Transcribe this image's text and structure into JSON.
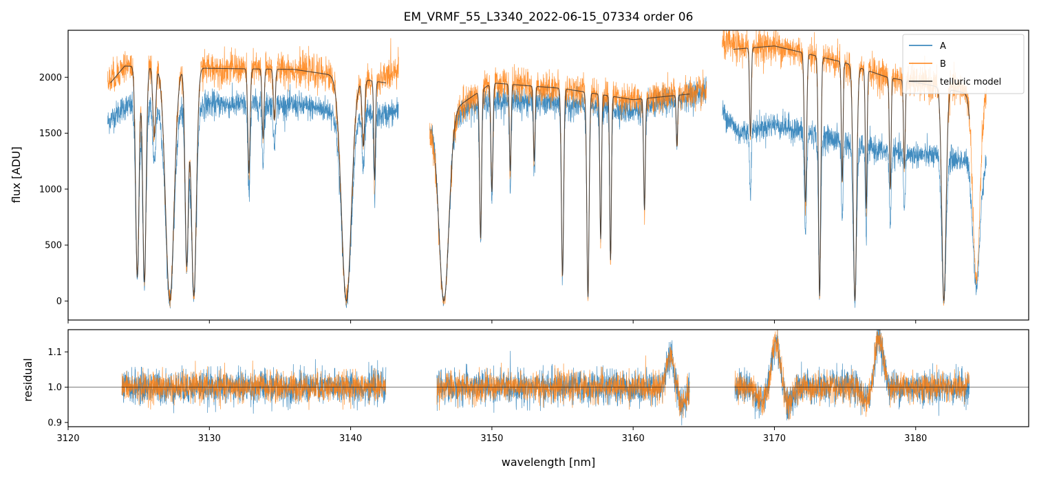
{
  "chart_data": [
    {
      "type": "line",
      "panel": "main",
      "title": "EM_VRMF_55_L3340_2022-06-15_07334  order 06",
      "xlabel": "",
      "ylabel": "flux [ADU]",
      "xlim": [
        3120.0,
        3188.0
      ],
      "ylim": [
        -170,
        2420
      ],
      "yticks": [
        0,
        500,
        1000,
        1500,
        2000
      ],
      "yticklabels": [
        "0",
        "500",
        "1000",
        "1500",
        "2000"
      ],
      "xticks": [
        3120,
        3130,
        3140,
        3150,
        3160,
        3170,
        3180
      ],
      "legend": {
        "placement": "top-right",
        "entries": [
          "A",
          "B",
          "telluric model"
        ]
      },
      "series": [
        {
          "name": "A",
          "color": "#1f77b4",
          "segments": [
            [
              3122.8,
              3143.4
            ],
            [
              3145.6,
              3165.2
            ],
            [
              3166.3,
              3185.0
            ]
          ],
          "noise": 60
        },
        {
          "name": "B",
          "color": "#ff7f0e",
          "segments": [
            [
              3122.8,
              3143.4
            ],
            [
              3145.6,
              3165.2
            ],
            [
              3166.3,
              3185.0
            ]
          ],
          "noise": 70
        },
        {
          "name": "telluric model",
          "color": "#333333",
          "segments": [
            [
              3123.0,
              3142.5
            ],
            [
              3146.0,
              3164.0
            ],
            [
              3167.1,
              3183.8
            ]
          ],
          "noise": 0
        }
      ],
      "continuum": {
        "A": [
          [
            3122.8,
            1600
          ],
          [
            3124,
            1740
          ],
          [
            3130,
            1760
          ],
          [
            3136,
            1750
          ],
          [
            3142,
            1650
          ],
          [
            3143.4,
            1700
          ],
          [
            3145.6,
            1580
          ],
          [
            3150,
            1800
          ],
          [
            3155,
            1760
          ],
          [
            3160,
            1700
          ],
          [
            3165.2,
            1880
          ],
          [
            3166.3,
            1700
          ],
          [
            3167.5,
            1500
          ],
          [
            3170,
            1580
          ],
          [
            3175,
            1420
          ],
          [
            3178,
            1330
          ],
          [
            3181,
            1300
          ],
          [
            3183,
            1260
          ],
          [
            3185,
            1260
          ]
        ],
        "B": [
          [
            3122.8,
            1950
          ],
          [
            3124,
            2100
          ],
          [
            3130,
            2080
          ],
          [
            3136,
            2070
          ],
          [
            3142,
            1950
          ],
          [
            3143.4,
            2100
          ],
          [
            3145.6,
            1500
          ],
          [
            3150,
            1950
          ],
          [
            3155,
            1900
          ],
          [
            3160,
            1800
          ],
          [
            3165.2,
            1870
          ],
          [
            3166.3,
            2300
          ],
          [
            3167.5,
            2270
          ],
          [
            3170,
            2280
          ],
          [
            3175,
            2130
          ],
          [
            3178,
            2000
          ],
          [
            3181,
            1930
          ],
          [
            3183,
            1900
          ],
          [
            3185,
            1850
          ]
        ],
        "telluric model": [
          [
            3123.0,
            1950
          ],
          [
            3124,
            2100
          ],
          [
            3130,
            2080
          ],
          [
            3136,
            2070
          ],
          [
            3142.5,
            1950
          ],
          [
            3146.0,
            1600
          ],
          [
            3150,
            1950
          ],
          [
            3155,
            1900
          ],
          [
            3160,
            1800
          ],
          [
            3164.0,
            1850
          ],
          [
            3167.1,
            2250
          ],
          [
            3170,
            2280
          ],
          [
            3175,
            2130
          ],
          [
            3178,
            2000
          ],
          [
            3181,
            1930
          ],
          [
            3183.8,
            1850
          ]
        ]
      },
      "absorption_lines": [
        {
          "center": 3124.9,
          "width": 0.12,
          "depth": 0.9
        },
        {
          "center": 3125.4,
          "width": 0.12,
          "depth": 0.92
        },
        {
          "center": 3126.1,
          "width": 0.1,
          "depth": 0.3
        },
        {
          "center": 3127.2,
          "width": 0.3,
          "depth": 1.0
        },
        {
          "center": 3128.4,
          "width": 0.12,
          "depth": 0.85
        },
        {
          "center": 3128.9,
          "width": 0.18,
          "depth": 0.98
        },
        {
          "center": 3132.8,
          "width": 0.08,
          "depth": 0.45
        },
        {
          "center": 3133.8,
          "width": 0.07,
          "depth": 0.3
        },
        {
          "center": 3134.6,
          "width": 0.07,
          "depth": 0.22
        },
        {
          "center": 3139.7,
          "width": 0.35,
          "depth": 1.0
        },
        {
          "center": 3140.9,
          "width": 0.09,
          "depth": 0.3
        },
        {
          "center": 3141.7,
          "width": 0.06,
          "depth": 0.45
        },
        {
          "center": 3146.6,
          "width": 0.35,
          "depth": 1.0
        },
        {
          "center": 3149.2,
          "width": 0.07,
          "depth": 0.7
        },
        {
          "center": 3150.0,
          "width": 0.07,
          "depth": 0.5
        },
        {
          "center": 3151.3,
          "width": 0.06,
          "depth": 0.4
        },
        {
          "center": 3153.0,
          "width": 0.06,
          "depth": 0.35
        },
        {
          "center": 3155.0,
          "width": 0.08,
          "depth": 0.88
        },
        {
          "center": 3156.8,
          "width": 0.08,
          "depth": 0.98
        },
        {
          "center": 3157.7,
          "width": 0.06,
          "depth": 0.7
        },
        {
          "center": 3158.4,
          "width": 0.06,
          "depth": 0.8
        },
        {
          "center": 3160.8,
          "width": 0.06,
          "depth": 0.55
        },
        {
          "center": 3163.1,
          "width": 0.05,
          "depth": 0.25
        },
        {
          "center": 3168.3,
          "width": 0.06,
          "depth": 0.35
        },
        {
          "center": 3172.2,
          "width": 0.08,
          "depth": 0.6
        },
        {
          "center": 3173.2,
          "width": 0.08,
          "depth": 0.98
        },
        {
          "center": 3174.8,
          "width": 0.06,
          "depth": 0.5
        },
        {
          "center": 3175.7,
          "width": 0.12,
          "depth": 1.0
        },
        {
          "center": 3176.5,
          "width": 0.06,
          "depth": 0.6
        },
        {
          "center": 3178.2,
          "width": 0.06,
          "depth": 0.5
        },
        {
          "center": 3179.2,
          "width": 0.06,
          "depth": 0.4
        },
        {
          "center": 3182.0,
          "width": 0.15,
          "depth": 1.0
        },
        {
          "center": 3184.3,
          "width": 0.25,
          "depth": 0.9
        }
      ]
    },
    {
      "type": "line",
      "panel": "residual",
      "title": "",
      "xlabel": "wavelength [nm]",
      "ylabel": "residual",
      "xlim": [
        3120.0,
        3188.0
      ],
      "ylim": [
        0.888,
        1.163
      ],
      "yticks": [
        0.9,
        1.0,
        1.1
      ],
      "yticklabels": [
        "0.9",
        "1.0",
        "1.1"
      ],
      "xticks": [
        3120,
        3130,
        3140,
        3150,
        3160,
        3170,
        3180
      ],
      "xticklabels": [
        "3120",
        "3130",
        "3140",
        "3150",
        "3160",
        "3170",
        "3180"
      ],
      "reference_line": 1.0,
      "series": [
        {
          "name": "A",
          "color": "#1f77b4",
          "segments": [
            [
              3123.8,
              3142.5
            ],
            [
              3146.1,
              3164.0
            ],
            [
              3167.2,
              3183.8
            ]
          ],
          "noise": 0.04
        },
        {
          "name": "B",
          "color": "#ff7f0e",
          "segments": [
            [
              3123.8,
              3142.5
            ],
            [
              3146.1,
              3164.0
            ],
            [
              3167.2,
              3183.8
            ]
          ],
          "noise": 0.035
        }
      ],
      "features": [
        {
          "center": 3162.6,
          "width": 0.25,
          "amp": 0.09
        },
        {
          "center": 3163.5,
          "width": 0.25,
          "amp": -0.05
        },
        {
          "center": 3169.1,
          "width": 0.4,
          "amp": -0.04
        },
        {
          "center": 3170.1,
          "width": 0.3,
          "amp": 0.13
        },
        {
          "center": 3171.0,
          "width": 0.3,
          "amp": -0.05
        },
        {
          "center": 3177.4,
          "width": 0.3,
          "amp": 0.14
        },
        {
          "center": 3176.5,
          "width": 0.3,
          "amp": -0.04
        }
      ]
    }
  ]
}
